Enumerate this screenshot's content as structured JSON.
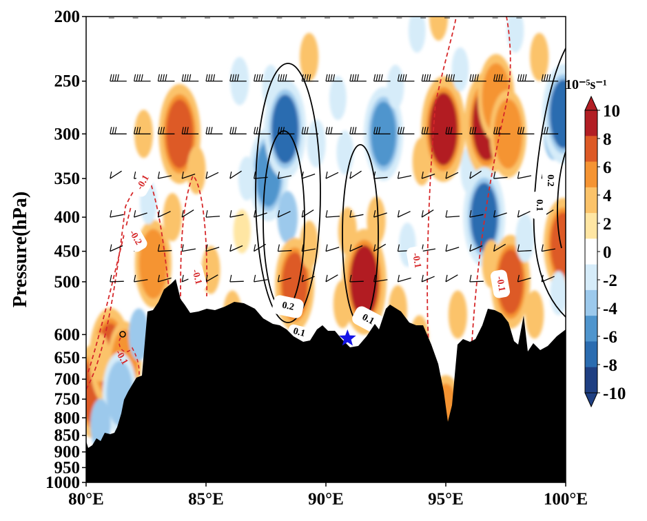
{
  "chart_data": {
    "type": "heatmap",
    "title": "",
    "ylabel": "Pressure(hPa)",
    "xlabel": "",
    "x_ticks": [
      "80°E",
      "85°E",
      "90°E",
      "95°E",
      "100°E"
    ],
    "x_tick_values": [
      80,
      85,
      90,
      95,
      100
    ],
    "y_ticks": [
      "200",
      "250",
      "300",
      "350",
      "400",
      "450",
      "500",
      "600",
      "650",
      "700",
      "750",
      "800",
      "850",
      "900",
      "950",
      "1000"
    ],
    "y_tick_values": [
      200,
      250,
      300,
      350,
      400,
      450,
      500,
      600,
      650,
      700,
      750,
      800,
      850,
      900,
      950,
      1000
    ],
    "xlim": [
      80,
      100
    ],
    "ylim": [
      1000,
      200
    ],
    "y_scale": "log",
    "colorbar": {
      "units": "10⁻⁵s⁻¹",
      "levels": [
        -10,
        -8,
        -6,
        -4,
        -2,
        0,
        2,
        4,
        6,
        8,
        10
      ],
      "tick_labels": [
        "-10",
        "-8",
        "-6",
        "-4",
        "-2",
        "0",
        "2",
        "4",
        "6",
        "8",
        "10"
      ],
      "colors": [
        "#1f3f82",
        "#2b6cb0",
        "#4f95cd",
        "#9cc9ec",
        "#d6ecf9",
        "#ffffff",
        "#ffe6a3",
        "#fbc36a",
        "#f59433",
        "#dd5a26",
        "#b21e24"
      ],
      "extend": "both"
    },
    "shading": [
      {
        "lon": 80.3,
        "p": 730,
        "value": 7
      },
      {
        "lon": 81.0,
        "p": 650,
        "value": 8
      },
      {
        "lon": 81.6,
        "p": 660,
        "value": 5
      },
      {
        "lon": 80.6,
        "p": 650,
        "value": 3
      },
      {
        "lon": 81.4,
        "p": 735,
        "value": -5
      },
      {
        "lon": 80.6,
        "p": 820,
        "value": -4
      },
      {
        "lon": 82.8,
        "p": 470,
        "value": 6
      },
      {
        "lon": 82.2,
        "p": 600,
        "value": -4
      },
      {
        "lon": 83.9,
        "p": 300,
        "value": 8
      },
      {
        "lon": 84.6,
        "p": 340,
        "value": 3
      },
      {
        "lon": 83.6,
        "p": 400,
        "value": 3
      },
      {
        "lon": 82.4,
        "p": 300,
        "value": 3
      },
      {
        "lon": 82.6,
        "p": 380,
        "value": -2
      },
      {
        "lon": 85.2,
        "p": 480,
        "value": 3
      },
      {
        "lon": 86.5,
        "p": 420,
        "value": 2
      },
      {
        "lon": 86.1,
        "p": 560,
        "value": 3
      },
      {
        "lon": 86.4,
        "p": 250,
        "value": -3
      },
      {
        "lon": 87.7,
        "p": 255,
        "value": -2
      },
      {
        "lon": 87.6,
        "p": 345,
        "value": -7
      },
      {
        "lon": 88.3,
        "p": 295,
        "value": -8
      },
      {
        "lon": 88.4,
        "p": 400,
        "value": -4
      },
      {
        "lon": 86.7,
        "p": 350,
        "value": -2
      },
      {
        "lon": 88.7,
        "p": 505,
        "value": 7
      },
      {
        "lon": 89.3,
        "p": 440,
        "value": 3
      },
      {
        "lon": 89.3,
        "p": 230,
        "value": 3
      },
      {
        "lon": 89.6,
        "p": 310,
        "value": -3
      },
      {
        "lon": 90.5,
        "p": 265,
        "value": -2
      },
      {
        "lon": 90.8,
        "p": 320,
        "value": -2
      },
      {
        "lon": 90.9,
        "p": 420,
        "value": 3
      },
      {
        "lon": 90.7,
        "p": 540,
        "value": 3
      },
      {
        "lon": 91.6,
        "p": 500,
        "value": 9
      },
      {
        "lon": 92.1,
        "p": 405,
        "value": 3
      },
      {
        "lon": 92.4,
        "p": 300,
        "value": -7
      },
      {
        "lon": 92.9,
        "p": 255,
        "value": -2
      },
      {
        "lon": 93.0,
        "p": 550,
        "value": 3
      },
      {
        "lon": 93.4,
        "p": 440,
        "value": -2
      },
      {
        "lon": 93.9,
        "p": 610,
        "value": 3
      },
      {
        "lon": 94.0,
        "p": 330,
        "value": 3
      },
      {
        "lon": 94.9,
        "p": 295,
        "value": 9
      },
      {
        "lon": 94.7,
        "p": 200,
        "value": 3
      },
      {
        "lon": 93.8,
        "p": 210,
        "value": -2
      },
      {
        "lon": 95.6,
        "p": 240,
        "value": -2
      },
      {
        "lon": 96.0,
        "p": 340,
        "value": -3
      },
      {
        "lon": 95.5,
        "p": 560,
        "value": 3
      },
      {
        "lon": 96.7,
        "p": 290,
        "value": 9
      },
      {
        "lon": 97.1,
        "p": 265,
        "value": 6
      },
      {
        "lon": 96.6,
        "p": 400,
        "value": -8
      },
      {
        "lon": 96.9,
        "p": 470,
        "value": 3
      },
      {
        "lon": 97.6,
        "p": 300,
        "value": 6
      },
      {
        "lon": 97.7,
        "p": 500,
        "value": 7
      },
      {
        "lon": 97.9,
        "p": 210,
        "value": -2
      },
      {
        "lon": 98.3,
        "p": 430,
        "value": -3
      },
      {
        "lon": 98.7,
        "p": 560,
        "value": 3
      },
      {
        "lon": 98.9,
        "p": 230,
        "value": 3
      },
      {
        "lon": 99.5,
        "p": 300,
        "value": -4
      },
      {
        "lon": 99.9,
        "p": 280,
        "value": -8
      },
      {
        "lon": 99.9,
        "p": 440,
        "value": 7
      },
      {
        "lon": 99.7,
        "p": 520,
        "value": -2
      },
      {
        "lon": 95.0,
        "p": 760,
        "value": -3
      },
      {
        "lon": 95.0,
        "p": 795,
        "value": 5
      }
    ],
    "contour_labels": [
      "-0.1",
      "-0.2",
      "-0.1",
      "-0.1",
      "-0.1",
      "0.2",
      "0.1",
      "0.1",
      "0.2",
      "0.1",
      "-0.1"
    ],
    "marker": {
      "type": "star",
      "lon": 90.9,
      "p": 608,
      "color": "#1414e6"
    }
  }
}
